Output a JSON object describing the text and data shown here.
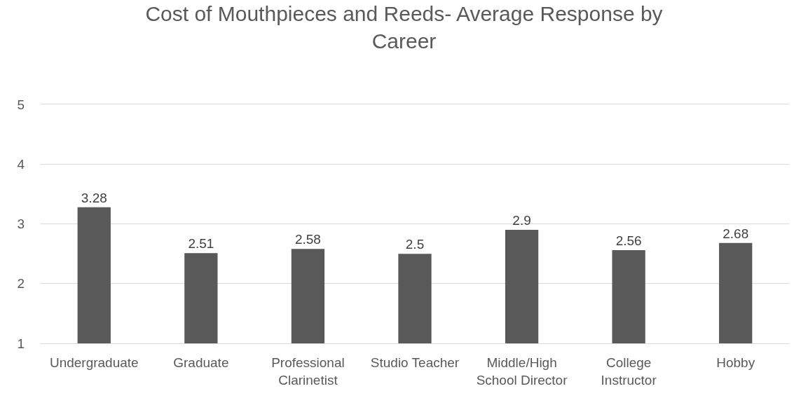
{
  "chart_data": {
    "type": "bar",
    "title": "Cost of Mouthpieces and Reeds- Average Response by Career",
    "categories": [
      "Undergraduate",
      "Graduate",
      "Professional Clarinetist",
      "Studio Teacher",
      "Middle/High School Director",
      "College Instructor",
      "Hobby"
    ],
    "values": [
      3.28,
      2.51,
      2.58,
      2.5,
      2.9,
      2.56,
      2.68
    ],
    "color": "#595959",
    "ylim": [
      1,
      5
    ],
    "yticks": [
      1,
      2,
      3,
      4,
      5
    ],
    "grid": "y",
    "data_labels": true
  }
}
